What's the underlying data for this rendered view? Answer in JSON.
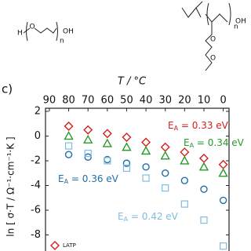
{
  "structures": {
    "left": [
      "H",
      "O",
      "n",
      "OH"
    ],
    "right": [
      "n",
      "OH",
      "O",
      "O"
    ]
  },
  "panel_label": "c)",
  "chart_data": {
    "type": "scatter",
    "xlabel": "T / °C",
    "ylabel": "ln [ σ·T  /  Ω⁻¹·cm⁻¹·K ]",
    "xlim": [
      92,
      -3
    ],
    "xticks": [
      90,
      80,
      70,
      60,
      50,
      40,
      30,
      20,
      10,
      0
    ],
    "ylim": [
      -9.3,
      2.25
    ],
    "yticks": [
      2,
      0,
      -2,
      -4,
      -6,
      -8
    ],
    "x": [
      80,
      70,
      60,
      50,
      40,
      30,
      20,
      10,
      0
    ],
    "series": [
      {
        "name": "LATP",
        "color": "#d42020",
        "marker": "diamond",
        "values": [
          0.8,
          0.5,
          0.2,
          -0.1,
          -0.5,
          -0.9,
          -1.3,
          -1.8,
          -2.3
        ]
      },
      {
        "color": "#2a9a2a",
        "marker": "triangle",
        "values": [
          0.0,
          -0.3,
          -0.6,
          -0.9,
          -1.2,
          -1.6,
          -2.0,
          -2.5,
          -3.0
        ]
      },
      {
        "color": "#1f6fa8",
        "marker": "circle",
        "values": [
          -1.5,
          -1.7,
          -1.9,
          -2.2,
          -2.5,
          -3.0,
          -3.6,
          -4.3,
          -5.2
        ]
      },
      {
        "color": "#7fbde0",
        "marker": "square",
        "values": [
          -0.8,
          -1.4,
          -2.0,
          -2.6,
          -3.4,
          -4.2,
          -5.5,
          -6.8,
          -8.9
        ]
      }
    ],
    "annotations": [
      {
        "main": "E",
        "sub": "A",
        "rest": " = 0.33 eV",
        "color": "#d42020"
      },
      {
        "main": "E",
        "sub": "A",
        "rest": " = 0.34 eV",
        "color": "#2a9a2a"
      },
      {
        "main": "E",
        "sub": "A",
        "rest": " = 0.36 eV",
        "color": "#1f6fa8"
      },
      {
        "main": "E",
        "sub": "A",
        "rest": " = 0.42 eV",
        "color": "#7fbde0"
      }
    ]
  }
}
